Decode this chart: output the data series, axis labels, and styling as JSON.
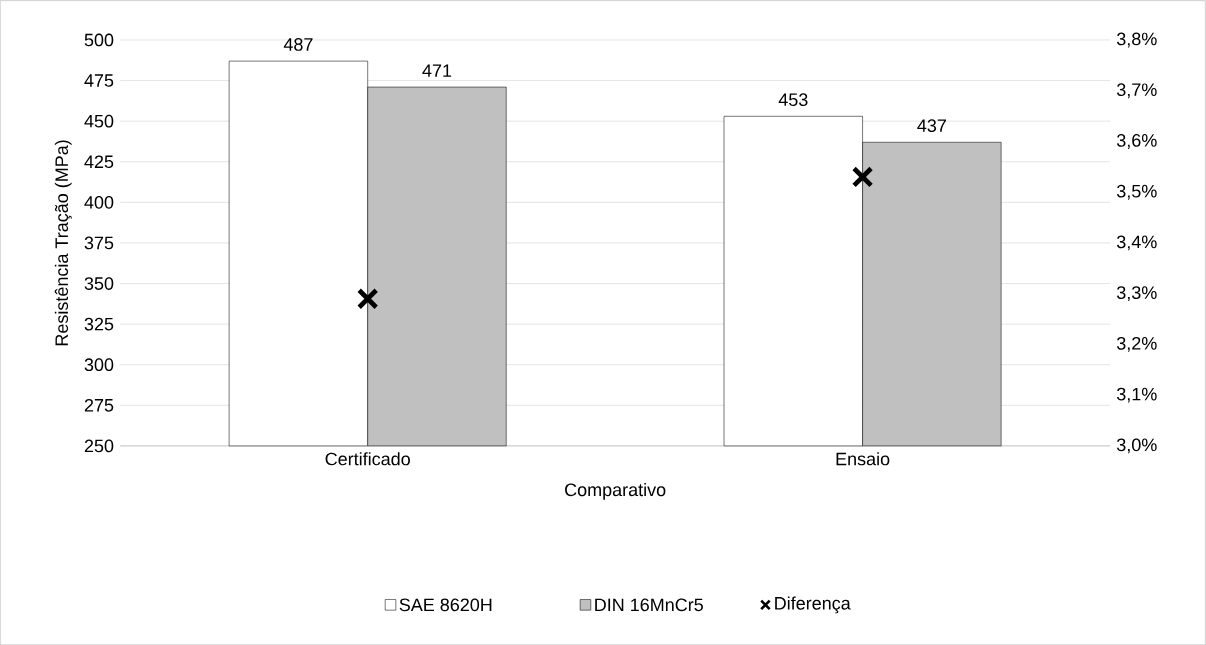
{
  "chart_data": {
    "type": "bar",
    "xlabel": "Comparativo",
    "ylabel": "Resistência Tração (MPa)",
    "categories": [
      "Certificado",
      "Ensaio"
    ],
    "series": [
      {
        "name": "SAE 8620H",
        "color": "#ffffff",
        "values": [
          487,
          453
        ],
        "value_labels": [
          "487",
          "453"
        ]
      },
      {
        "name": "DIN 16MnCr5",
        "color": "#c0c0c0",
        "values": [
          471,
          437
        ],
        "value_labels": [
          "471",
          "437"
        ]
      },
      {
        "name": "Diferença",
        "type": "scatter",
        "axis": "y2",
        "color": "#000000",
        "marker": "cross",
        "values": [
          3.29,
          3.53
        ]
      }
    ],
    "ylim": [
      250,
      500
    ],
    "yticks": [
      250,
      275,
      300,
      325,
      350,
      375,
      400,
      425,
      450,
      475,
      500
    ],
    "y2lim": [
      3.0,
      3.8
    ],
    "y2ticks": [
      {
        "value": 3.0,
        "label": "3,0%"
      },
      {
        "value": 3.1,
        "label": "3,1%"
      },
      {
        "value": 3.2,
        "label": "3,2%"
      },
      {
        "value": 3.3,
        "label": "3,3%"
      },
      {
        "value": 3.4,
        "label": "3,4%"
      },
      {
        "value": 3.5,
        "label": "3,5%"
      },
      {
        "value": 3.6,
        "label": "3,6%"
      },
      {
        "value": 3.7,
        "label": "3,7%"
      },
      {
        "value": 3.8,
        "label": "3,8%"
      }
    ],
    "grid": "y",
    "legend": "bottom"
  }
}
